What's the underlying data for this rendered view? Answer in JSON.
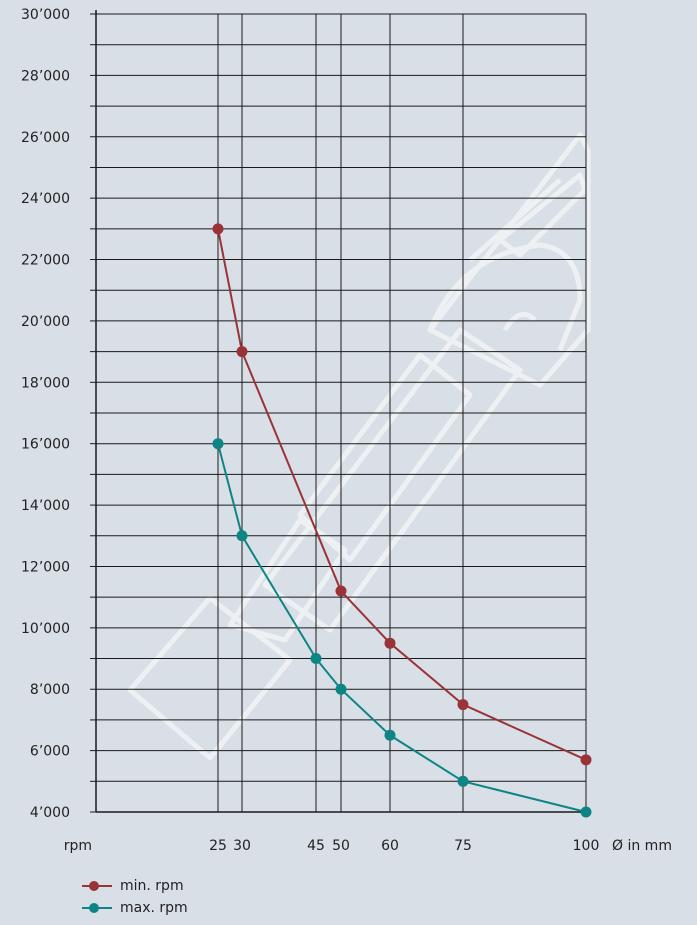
{
  "chart_data": {
    "type": "line",
    "x_tick_values": [
      25,
      30,
      45,
      50,
      60,
      75,
      100
    ],
    "x_tick_labels": [
      "25",
      "30",
      "45",
      "50",
      "60",
      "75",
      "100"
    ],
    "y_tick_labels": [
      "30’000",
      "28’000",
      "26’000",
      "24’000",
      "22’000",
      "20’000",
      "18’000",
      "16’000",
      "14’000",
      "12’000",
      "10’000",
      "8’000",
      "6’000",
      "4’000"
    ],
    "y_tick_values": [
      30000,
      28000,
      26000,
      24000,
      22000,
      20000,
      18000,
      16000,
      14000,
      12000,
      10000,
      8000,
      6000,
      4000
    ],
    "ylim": [
      4000,
      30000
    ],
    "ylabel": "rpm",
    "xlabel": "Ø in mm",
    "grid": true,
    "legend_position": "bottom-left",
    "series": [
      {
        "name": "min. rpm",
        "color": "#9a3338",
        "x": [
          25,
          30,
          50,
          60,
          75,
          100
        ],
        "y": [
          23000,
          19000,
          11200,
          9500,
          7500,
          5700
        ]
      },
      {
        "name": "max. rpm",
        "color": "#0e8585",
        "x": [
          25,
          30,
          45,
          50,
          60,
          75,
          100
        ],
        "y": [
          16000,
          13000,
          9000,
          8000,
          6500,
          5000,
          4000
        ]
      }
    ]
  },
  "legend": [
    "min. rpm",
    "max. rpm"
  ]
}
